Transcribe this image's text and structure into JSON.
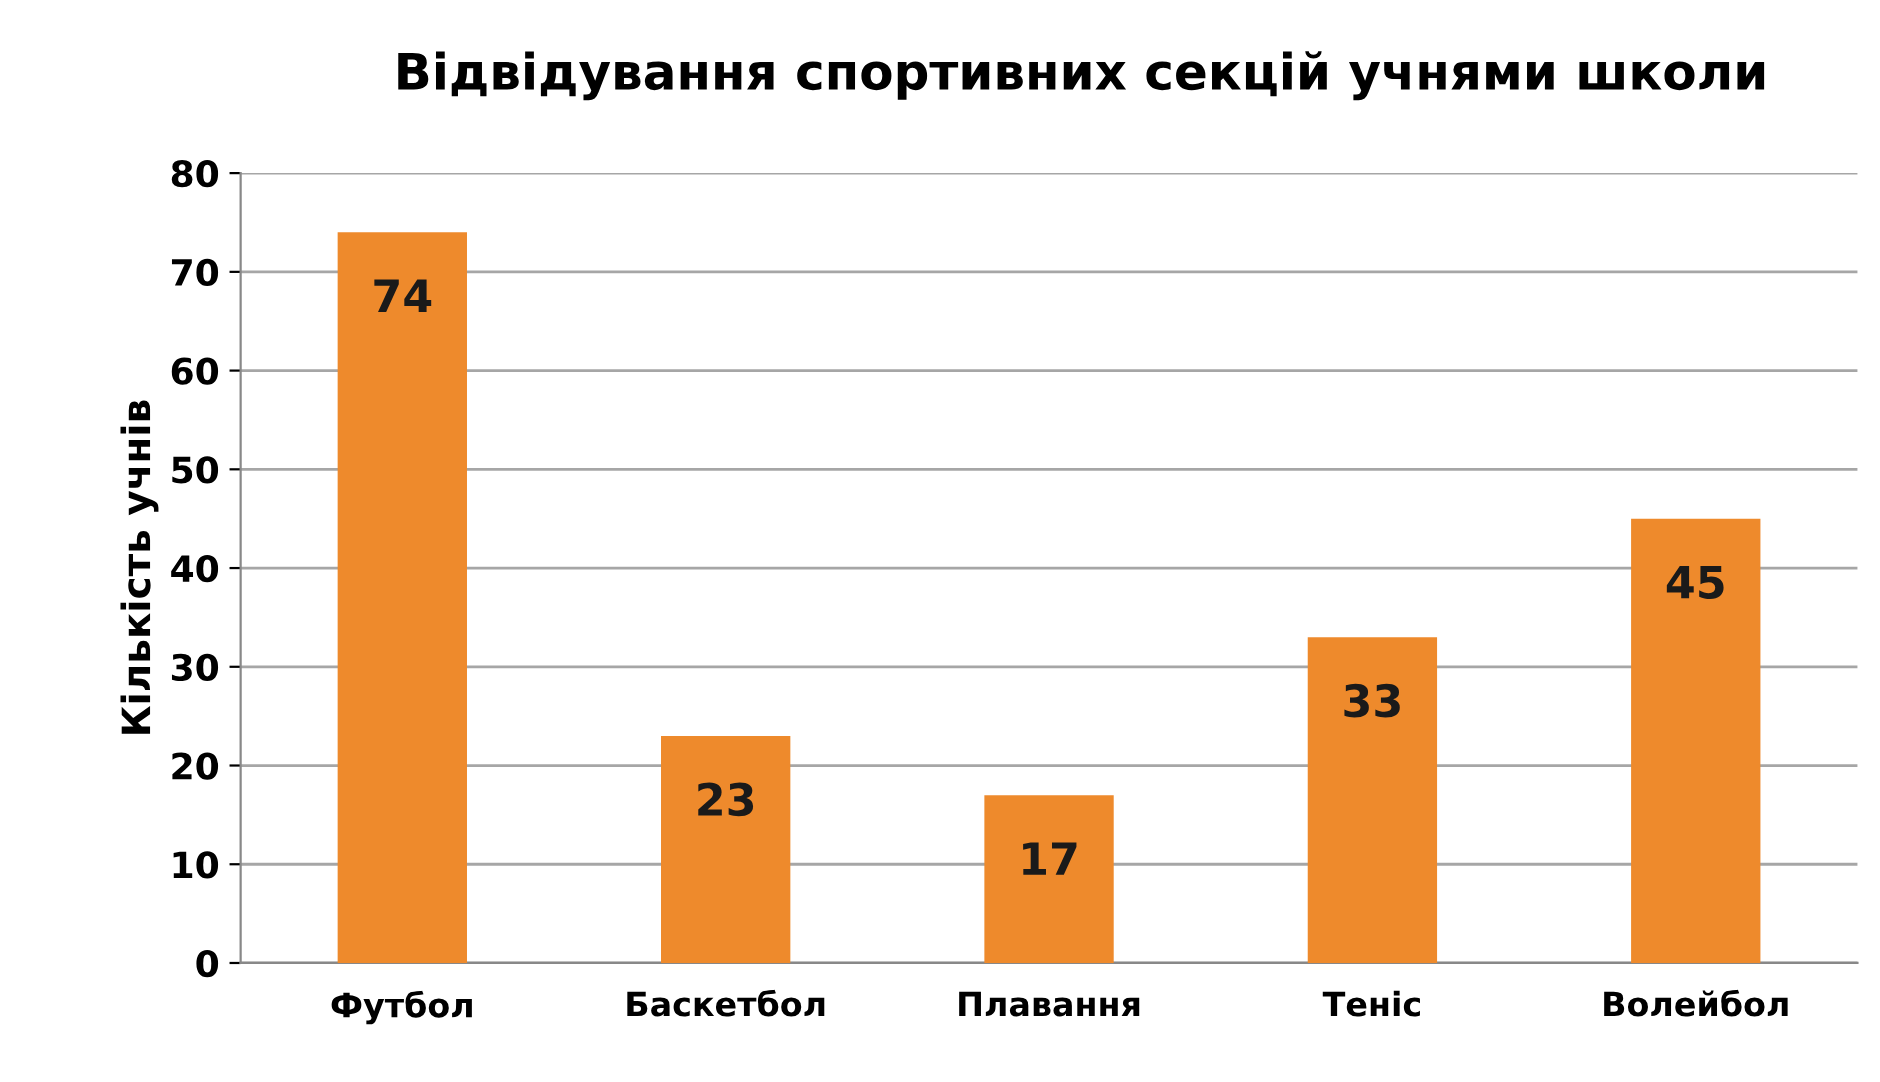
{
  "chart_data": {
    "type": "bar",
    "title": "Відвідування спортивних секцій учнями школи",
    "ylabel": "Кількість учнів",
    "categories": [
      "Футбол",
      "Баскетбол",
      "Плавання",
      "Теніс",
      "Волейбол"
    ],
    "values": [
      74,
      23,
      17,
      33,
      45
    ],
    "color": "#ee8a2c",
    "ylim": [
      0,
      80
    ],
    "yticks": [
      0,
      10,
      20,
      30,
      40,
      50,
      60,
      70,
      80
    ],
    "grid": "y",
    "data_labels": true,
    "legend": false
  }
}
